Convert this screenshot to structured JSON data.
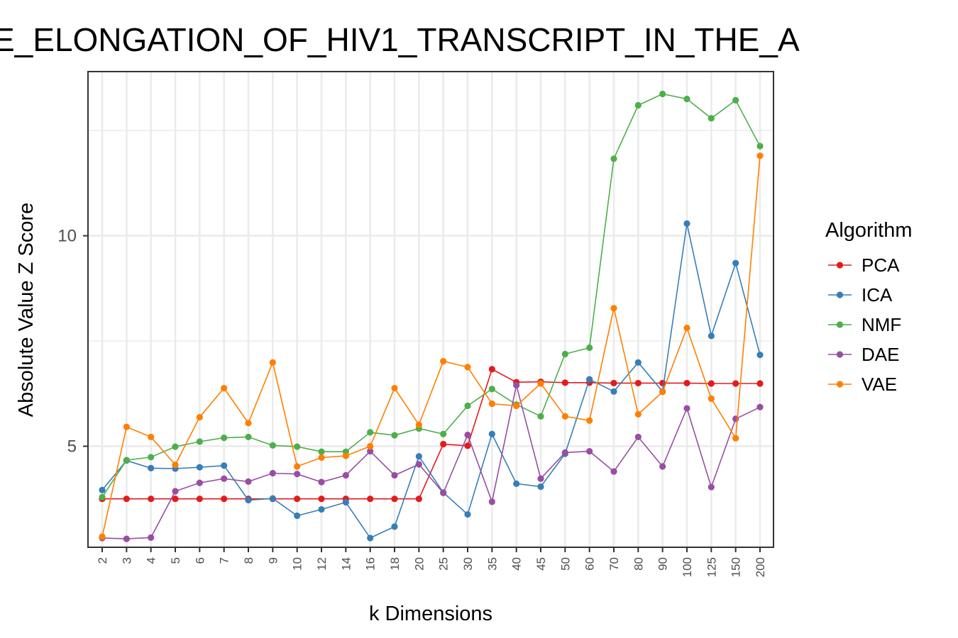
{
  "chart_data": {
    "type": "line",
    "title": "E_ELONGATION_OF_HIV1_TRANSCRIPT_IN_THE_A",
    "xlabel": "k Dimensions",
    "ylabel": "Absolute Value Z Score",
    "ylim": [
      2.6,
      13.9
    ],
    "yticks": [
      5,
      10
    ],
    "grid": true,
    "legend_title": "Algorithm",
    "legend_position": "right",
    "categories": [
      "2",
      "3",
      "4",
      "5",
      "6",
      "7",
      "8",
      "9",
      "10",
      "12",
      "14",
      "16",
      "18",
      "20",
      "25",
      "30",
      "35",
      "40",
      "45",
      "50",
      "60",
      "70",
      "80",
      "90",
      "100",
      "125",
      "150",
      "200"
    ],
    "series": [
      {
        "name": "PCA",
        "color": "#e41a1c",
        "values": [
          3.75,
          3.75,
          3.75,
          3.75,
          3.75,
          3.75,
          3.75,
          3.75,
          3.75,
          3.75,
          3.75,
          3.75,
          3.75,
          3.75,
          5.05,
          5.01,
          6.83,
          6.52,
          6.53,
          6.51,
          6.51,
          6.5,
          6.5,
          6.5,
          6.5,
          6.49,
          6.49,
          6.49
        ]
      },
      {
        "name": "ICA",
        "color": "#377eb8",
        "values": [
          3.96,
          4.66,
          4.48,
          4.47,
          4.5,
          4.54,
          3.72,
          3.76,
          3.35,
          3.5,
          3.67,
          2.82,
          3.09,
          4.76,
          3.9,
          3.38,
          5.29,
          4.11,
          4.04,
          4.82,
          6.59,
          6.3,
          6.99,
          6.3,
          10.29,
          7.62,
          9.35,
          7.17
        ]
      },
      {
        "name": "NMF",
        "color": "#4daf4a",
        "values": [
          3.79,
          4.67,
          4.74,
          4.99,
          5.11,
          5.2,
          5.22,
          5.02,
          4.99,
          4.87,
          4.87,
          5.33,
          5.26,
          5.42,
          5.29,
          5.96,
          6.36,
          5.99,
          5.71,
          7.19,
          7.34,
          11.83,
          13.1,
          13.37,
          13.25,
          12.79,
          13.22,
          12.13
        ]
      },
      {
        "name": "DAE",
        "color": "#984ea3",
        "values": [
          2.82,
          2.8,
          2.83,
          3.93,
          4.13,
          4.23,
          4.16,
          4.36,
          4.34,
          4.15,
          4.31,
          4.88,
          4.31,
          4.57,
          3.89,
          5.27,
          3.68,
          6.45,
          4.23,
          4.85,
          4.88,
          4.4,
          5.22,
          4.52,
          5.9,
          4.03,
          5.65,
          5.93
        ]
      },
      {
        "name": "VAE",
        "color": "#ff7f00",
        "values": [
          2.85,
          5.46,
          5.22,
          4.56,
          5.69,
          6.38,
          5.55,
          6.99,
          4.52,
          4.73,
          4.77,
          5.0,
          6.38,
          5.51,
          7.02,
          6.88,
          6.01,
          5.96,
          6.49,
          5.71,
          5.61,
          8.28,
          5.76,
          6.29,
          7.81,
          6.13,
          5.19,
          11.9
        ]
      }
    ]
  }
}
